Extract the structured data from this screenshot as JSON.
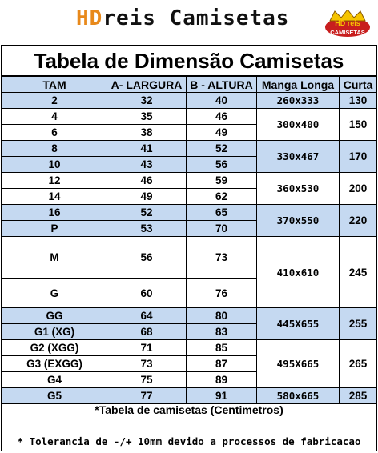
{
  "brand": {
    "prefix": "HD",
    "name": "reis Camisetas",
    "logo_text_top": "HD reis",
    "logo_text_bottom": "CAMISETAS"
  },
  "title": "Tabela de Dimensão Camisetas",
  "columns": [
    "TAM",
    "A- LARGURA",
    "B - ALTURA",
    "Manga Longa",
    "Curta"
  ],
  "rows": [
    {
      "tam": "2",
      "largura": "32",
      "altura": "40"
    },
    {
      "tam": "4",
      "largura": "35",
      "altura": "46"
    },
    {
      "tam": "6",
      "largura": "38",
      "altura": "49"
    },
    {
      "tam": "8",
      "largura": "41",
      "altura": "52"
    },
    {
      "tam": "10",
      "largura": "43",
      "altura": "56"
    },
    {
      "tam": "12",
      "largura": "46",
      "altura": "59"
    },
    {
      "tam": "14",
      "largura": "49",
      "altura": "62"
    },
    {
      "tam": "16",
      "largura": "52",
      "altura": "65"
    },
    {
      "tam": "P",
      "largura": "53",
      "altura": "70"
    },
    {
      "tam": "M",
      "largura": "56",
      "altura": "73"
    },
    {
      "tam": "G",
      "largura": "60",
      "altura": "76"
    },
    {
      "tam": "GG",
      "largura": "64",
      "altura": "80"
    },
    {
      "tam": "G1 (XG)",
      "largura": "68",
      "altura": "83"
    },
    {
      "tam": "G2 (XGG)",
      "largura": "71",
      "altura": "85"
    },
    {
      "tam": "G3 (EXGG)",
      "largura": "73",
      "altura": "87"
    },
    {
      "tam": "G4",
      "largura": "75",
      "altura": "89"
    },
    {
      "tam": "G5",
      "largura": "77",
      "altura": "91"
    }
  ],
  "sleeve_groups": [
    {
      "manga_longa": "260x333",
      "curta": "130"
    },
    {
      "manga_longa": "300x400",
      "curta": "150"
    },
    {
      "manga_longa": "330x467",
      "curta": "170"
    },
    {
      "manga_longa": "360x530",
      "curta": "200"
    },
    {
      "manga_longa": "370x550",
      "curta": "220"
    },
    {
      "manga_longa": "410x610",
      "curta": "245"
    },
    {
      "manga_longa": "445X655",
      "curta": "255"
    },
    {
      "manga_longa": "495X665",
      "curta": "265"
    },
    {
      "manga_longa": "580x665",
      "curta": "285"
    }
  ],
  "notes": {
    "unit_note": "*Tabela de camisetas (Centimetros)",
    "tolerance_note": "* Tolerancia de -/+ 10mm devido a processos de fabricacao"
  },
  "colors": {
    "shade": "#c5d9f1",
    "brand_orange": "#e8891b",
    "logo_red": "#c81e1e",
    "logo_yellow": "#f5c400"
  }
}
